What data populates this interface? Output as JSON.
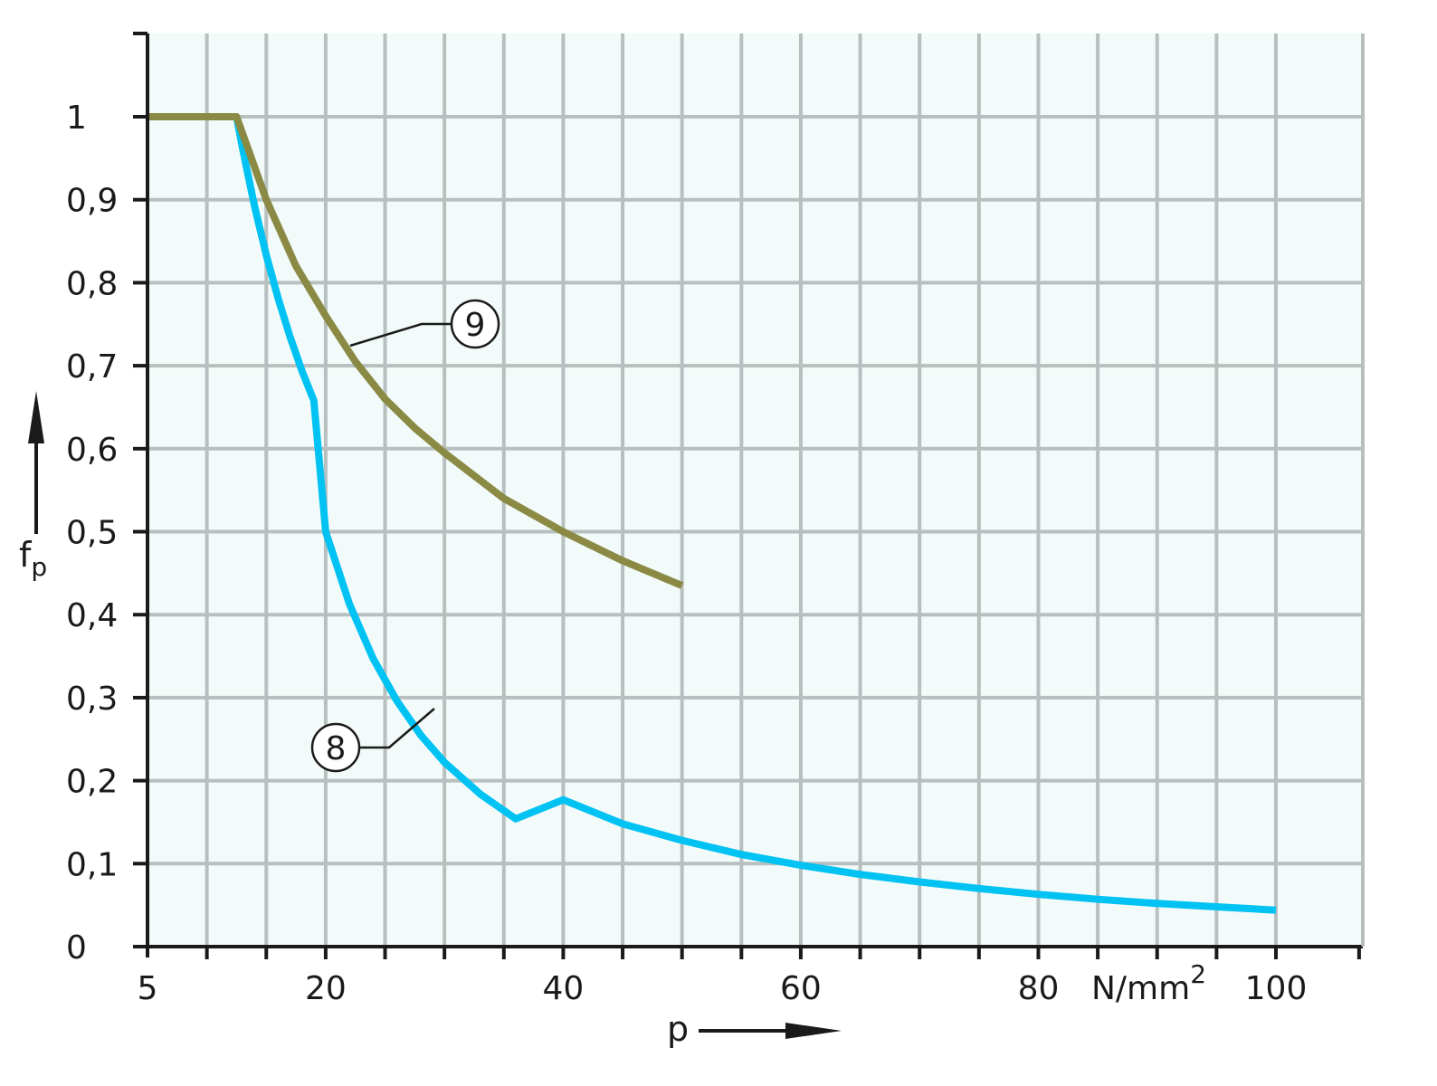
{
  "chart_data": {
    "type": "line",
    "xlabel": "p",
    "ylabel_main": "f",
    "ylabel_sub": "p",
    "x_unit_label": "N/mm",
    "x_unit_sup": "2",
    "xlim": [
      5,
      108
    ],
    "ylim": [
      0,
      1.1
    ],
    "x_tick_labels": [
      {
        "value": 5,
        "label": "5"
      },
      {
        "value": 20,
        "label": "20"
      },
      {
        "value": 40,
        "label": "40"
      },
      {
        "value": 60,
        "label": "60"
      },
      {
        "value": 80,
        "label": "80"
      },
      {
        "value": 100,
        "label": "100"
      }
    ],
    "x_gridlines": [
      10,
      15,
      20,
      25,
      30,
      35,
      40,
      45,
      50,
      55,
      60,
      65,
      70,
      75,
      80,
      85,
      90,
      95,
      100,
      108
    ],
    "x_minor_ticks": [
      10,
      15,
      20,
      25,
      30,
      35,
      40,
      45,
      50,
      55,
      60,
      65,
      70,
      75,
      80,
      85,
      90,
      95,
      100,
      107
    ],
    "y_ticks": [
      {
        "value": 0,
        "label": "0"
      },
      {
        "value": 0.1,
        "label": "0,1"
      },
      {
        "value": 0.2,
        "label": "0,2"
      },
      {
        "value": 0.3,
        "label": "0,3"
      },
      {
        "value": 0.4,
        "label": "0,4"
      },
      {
        "value": 0.5,
        "label": "0,5"
      },
      {
        "value": 0.6,
        "label": "0,6"
      },
      {
        "value": 0.7,
        "label": "0,7"
      },
      {
        "value": 0.8,
        "label": "0,8"
      },
      {
        "value": 0.9,
        "label": "0,9"
      },
      {
        "value": 1.0,
        "label": "1"
      }
    ],
    "grid": true,
    "series": [
      {
        "name": "8",
        "color": "#00c2f3",
        "x": [
          5,
          12.5,
          13,
          14,
          15,
          16,
          17,
          18,
          19,
          20,
          22,
          24,
          26,
          28,
          30,
          33,
          36,
          40,
          45,
          50,
          55,
          60,
          65,
          70,
          75,
          80,
          85,
          90,
          95,
          100
        ],
        "y": [
          1.0,
          1.0,
          0.962,
          0.893,
          0.833,
          0.781,
          0.735,
          0.694,
          0.658,
          0.5,
          0.413,
          0.347,
          0.296,
          0.255,
          0.222,
          0.184,
          0.154,
          0.177,
          0.148,
          0.128,
          0.111,
          0.098,
          0.087,
          0.078,
          0.07,
          0.063,
          0.057,
          0.052,
          0.048,
          0.044
        ]
      },
      {
        "name": "9",
        "color": "#8a8a45",
        "x": [
          5,
          12.5,
          15,
          17.5,
          20,
          22.5,
          25,
          27.5,
          30,
          35,
          40,
          45,
          50
        ],
        "y": [
          1.0,
          1.0,
          0.9,
          0.82,
          0.76,
          0.705,
          0.66,
          0.625,
          0.595,
          0.54,
          0.5,
          0.465,
          0.435
        ]
      }
    ],
    "callouts": [
      {
        "label": "9",
        "series": "9"
      },
      {
        "label": "8",
        "series": "8"
      }
    ]
  },
  "colors": {
    "plot_background": "#f3fbfa",
    "grid": "#b8bfbf",
    "axis": "#1a1a1a"
  }
}
